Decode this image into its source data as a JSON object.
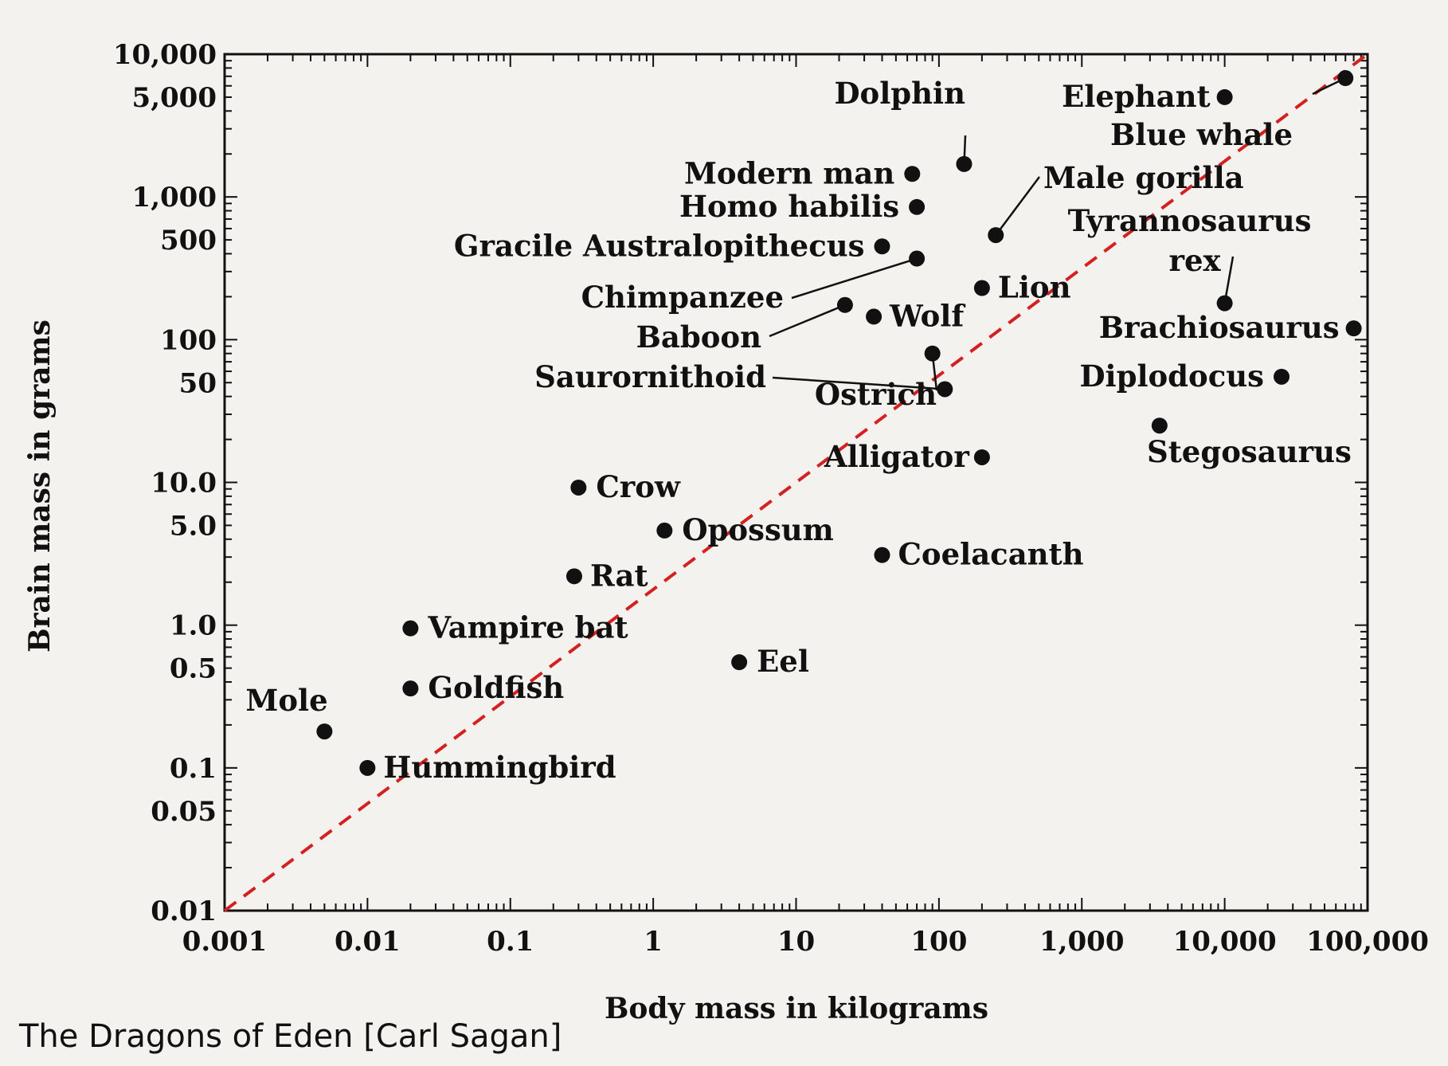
{
  "caption": "The Dragons of Eden [Carl Sagan]",
  "chart_data": {
    "type": "scatter",
    "title": "",
    "xlabel": "Body mass in kilograms",
    "ylabel": "Brain mass in grams",
    "xscale": "log",
    "yscale": "log",
    "xlim": [
      0.001,
      100000
    ],
    "ylim": [
      0.01,
      10000
    ],
    "x_ticks": [
      {
        "value": 0.001,
        "label": "0.001"
      },
      {
        "value": 0.01,
        "label": "0.01"
      },
      {
        "value": 0.1,
        "label": "0.1"
      },
      {
        "value": 1,
        "label": "1"
      },
      {
        "value": 10,
        "label": "10"
      },
      {
        "value": 100,
        "label": "100"
      },
      {
        "value": 1000,
        "label": "1,000"
      },
      {
        "value": 10000,
        "label": "10,000"
      },
      {
        "value": 100000,
        "label": "100,000"
      }
    ],
    "y_ticks": [
      {
        "value": 10000,
        "label": "10,000"
      },
      {
        "value": 5000,
        "label": "5,000"
      },
      {
        "value": 1000,
        "label": "1,000"
      },
      {
        "value": 500,
        "label": "500"
      },
      {
        "value": 100,
        "label": "100"
      },
      {
        "value": 50,
        "label": "50"
      },
      {
        "value": 10,
        "label": "10.0"
      },
      {
        "value": 5,
        "label": "5.0"
      },
      {
        "value": 1,
        "label": "1.0"
      },
      {
        "value": 0.5,
        "label": "0.5"
      },
      {
        "value": 0.1,
        "label": "0.1"
      },
      {
        "value": 0.05,
        "label": "0.05"
      },
      {
        "value": 0.01,
        "label": "0.01"
      }
    ],
    "reference_line": {
      "from": [
        0.001,
        0.01
      ],
      "to": [
        100000,
        10000
      ],
      "color": "#d42020",
      "style": "dashed"
    },
    "point_color": "#111111",
    "points": [
      {
        "label": "Elephant",
        "x": 10000,
        "y": 5000
      },
      {
        "label": "Blue whale",
        "x": 70000,
        "y": 6800
      },
      {
        "label": "Dolphin",
        "x": 150,
        "y": 1700
      },
      {
        "label": "Modern man",
        "x": 65,
        "y": 1450
      },
      {
        "label": "Homo habilis",
        "x": 70,
        "y": 850
      },
      {
        "label": "Male gorilla",
        "x": 250,
        "y": 540
      },
      {
        "label": "Tyrannosaurus rex",
        "x": 10000,
        "y": 180
      },
      {
        "label": "Gracile Australopithecus",
        "x": 40,
        "y": 450
      },
      {
        "label": "Chimpanzee",
        "x": 70,
        "y": 370
      },
      {
        "label": "Lion",
        "x": 200,
        "y": 230
      },
      {
        "label": "Baboon",
        "x": 22,
        "y": 175
      },
      {
        "label": "Wolf",
        "x": 35,
        "y": 145
      },
      {
        "label": "Brachiosaurus",
        "x": 80000,
        "y": 120
      },
      {
        "label": "Ostrich",
        "x": 90,
        "y": 80
      },
      {
        "label": "Saurornithoid",
        "x": 110,
        "y": 45
      },
      {
        "label": "Diplodocus",
        "x": 25000,
        "y": 55
      },
      {
        "label": "Stegosaurus",
        "x": 3500,
        "y": 25
      },
      {
        "label": "Alligator",
        "x": 200,
        "y": 15
      },
      {
        "label": "Crow",
        "x": 0.3,
        "y": 9.2
      },
      {
        "label": "Opossum",
        "x": 1.2,
        "y": 4.6
      },
      {
        "label": "Coelacanth",
        "x": 40,
        "y": 3.1
      },
      {
        "label": "Rat",
        "x": 0.28,
        "y": 2.2
      },
      {
        "label": "Vampire bat",
        "x": 0.02,
        "y": 0.95
      },
      {
        "label": "Eel",
        "x": 4,
        "y": 0.55
      },
      {
        "label": "Goldfish",
        "x": 0.02,
        "y": 0.36
      },
      {
        "label": "Mole",
        "x": 0.005,
        "y": 0.18
      },
      {
        "label": "Hummingbird",
        "x": 0.01,
        "y": 0.1
      }
    ]
  }
}
